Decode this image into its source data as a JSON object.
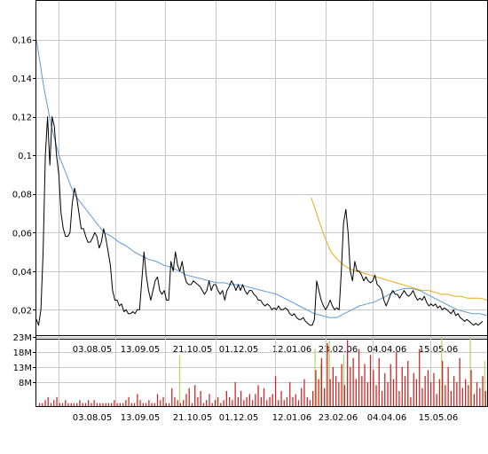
{
  "chart_data": [
    {
      "type": "line",
      "x_ticks": [
        "03.08.05",
        "13.09.05",
        "21.10.05",
        "01.12.05",
        "12.01.06",
        "23.02.06",
        "04.04.06",
        "15.05.06"
      ],
      "y_ticks": [
        "0,02",
        "0,04",
        "0,06",
        "0,08",
        "0,1",
        "0,12",
        "0,14",
        "0,16"
      ],
      "y_tick_values": [
        0.02,
        0.04,
        0.06,
        0.08,
        0.1,
        0.12,
        0.14,
        0.16
      ],
      "ylim": [
        0.005,
        0.18
      ],
      "grid": true,
      "series": [
        {
          "color": "#000000",
          "values": [
            0.015,
            0.012,
            0.02,
            0.05,
            0.1,
            0.12,
            0.095,
            0.12,
            0.115,
            0.1,
            0.09,
            0.07,
            0.062,
            0.058,
            0.058,
            0.06,
            0.075,
            0.083,
            0.078,
            0.07,
            0.062,
            0.062,
            0.058,
            0.055,
            0.055,
            0.057,
            0.06,
            0.058,
            0.052,
            0.055,
            0.062,
            0.057,
            0.05,
            0.043,
            0.03,
            0.025,
            0.025,
            0.022,
            0.023,
            0.019,
            0.02,
            0.018,
            0.018,
            0.019,
            0.018,
            0.02,
            0.02,
            0.035,
            0.05,
            0.038,
            0.03,
            0.025,
            0.03,
            0.035,
            0.037,
            0.03,
            0.028,
            0.03,
            0.025,
            0.025,
            0.045,
            0.04,
            0.05,
            0.043,
            0.04,
            0.045,
            0.038,
            0.034,
            0.033,
            0.033,
            0.035,
            0.034,
            0.033,
            0.032,
            0.03,
            0.028,
            0.03,
            0.035,
            0.03,
            0.033,
            0.033,
            0.03,
            0.028,
            0.03,
            0.025,
            0.03,
            0.032,
            0.035,
            0.033,
            0.03,
            0.033,
            0.03,
            0.033,
            0.03,
            0.028,
            0.03,
            0.03,
            0.028,
            0.027,
            0.025,
            0.025,
            0.023,
            0.022,
            0.023,
            0.022,
            0.02,
            0.021,
            0.02,
            0.022,
            0.02,
            0.02,
            0.021,
            0.02,
            0.018,
            0.017,
            0.018,
            0.016,
            0.015,
            0.015,
            0.016,
            0.014,
            0.013,
            0.012,
            0.012,
            0.015,
            0.035,
            0.03,
            0.025,
            0.022,
            0.02,
            0.022,
            0.025,
            0.022,
            0.02,
            0.021,
            0.02,
            0.04,
            0.065,
            0.072,
            0.06,
            0.04,
            0.035,
            0.045,
            0.04,
            0.04,
            0.038,
            0.035,
            0.037,
            0.035,
            0.034,
            0.035,
            0.038,
            0.033,
            0.032,
            0.03,
            0.025,
            0.022,
            0.025,
            0.028,
            0.03,
            0.028,
            0.028,
            0.026,
            0.028,
            0.03,
            0.028,
            0.027,
            0.028,
            0.03,
            0.027,
            0.025,
            0.026,
            0.025,
            0.027,
            0.024,
            0.022,
            0.023,
            0.022,
            0.023,
            0.021,
            0.022,
            0.02,
            0.021,
            0.02,
            0.019,
            0.018,
            0.02,
            0.017,
            0.018,
            0.016,
            0.015,
            0.014,
            0.015,
            0.014,
            0.013,
            0.012,
            0.013,
            0.012,
            0.013,
            0.014
          ]
        },
        {
          "color": "#5b9bd5",
          "values": [
            0.16,
            0.135,
            0.115,
            0.1,
            0.09,
            0.08,
            0.075,
            0.07,
            0.065,
            0.06,
            0.058,
            0.055,
            0.053,
            0.05,
            0.048,
            0.046,
            0.045,
            0.043,
            0.042,
            0.04,
            0.038,
            0.037,
            0.036,
            0.035,
            0.034,
            0.034,
            0.033,
            0.033,
            0.032,
            0.031,
            0.03,
            0.029,
            0.028,
            0.026,
            0.024,
            0.022,
            0.02,
            0.018,
            0.017,
            0.016,
            0.016,
            0.018,
            0.02,
            0.022,
            0.023,
            0.024,
            0.026,
            0.028,
            0.03,
            0.031,
            0.031,
            0.03,
            0.028,
            0.026,
            0.024,
            0.022,
            0.02,
            0.019,
            0.018,
            0.018,
            0.017
          ]
        },
        {
          "color": "#f0a818",
          "values": [
            0.078,
            0.068,
            0.058,
            0.05,
            0.046,
            0.043,
            0.041,
            0.04,
            0.039,
            0.038,
            0.037,
            0.036,
            0.035,
            0.034,
            0.033,
            0.032,
            0.031,
            0.03,
            0.03,
            0.029,
            0.028,
            0.028,
            0.027,
            0.027,
            0.026,
            0.026,
            0.026,
            0.025
          ]
        }
      ]
    },
    {
      "type": "bar",
      "x_ticks": [
        "03.08.05",
        "13.09.05",
        "21.10.05",
        "01.12.05",
        "12.01.06",
        "23.02.06",
        "04.04.06",
        "15.05.06"
      ],
      "y_ticks": [
        "23M",
        "18M",
        "13M",
        "8M"
      ],
      "y_tick_values": [
        23,
        18,
        13,
        8
      ],
      "ylim": [
        0,
        23
      ],
      "series": [
        {
          "color": "#cc2a2a",
          "values": [
            1,
            1,
            2,
            3,
            1,
            2,
            3,
            1,
            1,
            2,
            1,
            1,
            1,
            1,
            2,
            1,
            1,
            2,
            1,
            2,
            1,
            1,
            1,
            1,
            1,
            1,
            2,
            1,
            1,
            1,
            2,
            3,
            1,
            1,
            4,
            2,
            1,
            1,
            2,
            1,
            1,
            4,
            2,
            3,
            1,
            1,
            6,
            3,
            2,
            1,
            2,
            4,
            6,
            1,
            7,
            3,
            5,
            1,
            2,
            4,
            1,
            2,
            3,
            1,
            2,
            5,
            3,
            2,
            8,
            3,
            5,
            2,
            3,
            4,
            2,
            4,
            7,
            3,
            6,
            2,
            3,
            4,
            10,
            2,
            5,
            2,
            3,
            8,
            3,
            4,
            2,
            6,
            9,
            3,
            2,
            5,
            12,
            9,
            16,
            6,
            21,
            9,
            13,
            10,
            8,
            14,
            7,
            22,
            13,
            16,
            9,
            19,
            10,
            14,
            8,
            17,
            12,
            7,
            16,
            5,
            11,
            8,
            14,
            9,
            18,
            5,
            13,
            10,
            15,
            3,
            11,
            9,
            19,
            6,
            10,
            12,
            8,
            11,
            4,
            9,
            15,
            7,
            13,
            5,
            10,
            8,
            16,
            6,
            9,
            7,
            12,
            4,
            8,
            6,
            10,
            5
          ]
        },
        {
          "color": "#b5d96b",
          "values": [
            0,
            0,
            0,
            0,
            0,
            0,
            0,
            0,
            0,
            0,
            0,
            0,
            0,
            0,
            0,
            0,
            0,
            0,
            0,
            0,
            0,
            0,
            0,
            0,
            0,
            0,
            0,
            0,
            0,
            0,
            0,
            0,
            0,
            0,
            0,
            0,
            0,
            0,
            0,
            0,
            0,
            0,
            0,
            0,
            0,
            0,
            0,
            0,
            0,
            17,
            0,
            0,
            0,
            0,
            0,
            0,
            0,
            0,
            0,
            0,
            0,
            0,
            0,
            0,
            0,
            0,
            0,
            0,
            0,
            0,
            0,
            0,
            0,
            0,
            0,
            0,
            0,
            0,
            0,
            0,
            0,
            0,
            0,
            0,
            0,
            0,
            0,
            0,
            0,
            0,
            0,
            0,
            0,
            0,
            0,
            0,
            19,
            0,
            14,
            0,
            0,
            22,
            0,
            0,
            0,
            0,
            17,
            0,
            0,
            0,
            0,
            0,
            0,
            0,
            0,
            0,
            0,
            0,
            0,
            0,
            0,
            0,
            0,
            0,
            0,
            0,
            0,
            0,
            0,
            0,
            0,
            0,
            0,
            0,
            0,
            0,
            0,
            0,
            0,
            0,
            23,
            0,
            0,
            0,
            0,
            0,
            0,
            0,
            0,
            0,
            23,
            0,
            0,
            0,
            0,
            15
          ]
        }
      ]
    }
  ]
}
